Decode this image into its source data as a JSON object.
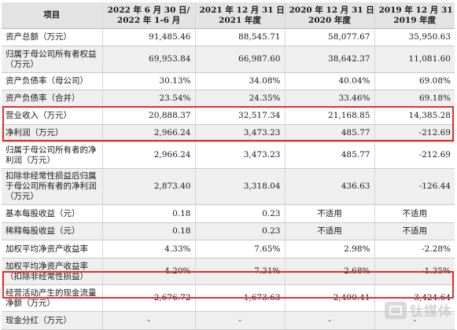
{
  "table": {
    "headers": [
      {
        "line1": "项目",
        "line2": ""
      },
      {
        "line1": "2022 年 6 月 30 日/",
        "line2": "2022 年 1-6 月"
      },
      {
        "line1": "2021 年 12 月 31 日/",
        "line2": "2021 年度"
      },
      {
        "line1": "2020 年 12 月 31 日/",
        "line2": "2020 年度"
      },
      {
        "line1": "2019 年 12 月 31 日/",
        "line2": "2019 年度"
      }
    ],
    "rows": [
      {
        "label": "资产总额（万元）",
        "values": [
          "91,485.46",
          "88,545.71",
          "58,077.67",
          "35,950.63"
        ]
      },
      {
        "label": "归属于母公司所有者权益（万元）",
        "values": [
          "69,953.84",
          "66,987.60",
          "38,642.37",
          "11,081.60"
        ]
      },
      {
        "label": "资产负债率（母公司）",
        "values": [
          "30.13%",
          "34.08%",
          "40.04%",
          "69.08%"
        ]
      },
      {
        "label": "资产负债率（合并）",
        "values": [
          "23.54%",
          "24.35%",
          "33.46%",
          "69.18%"
        ]
      },
      {
        "label": "营业收入（万元）",
        "values": [
          "20,888.37",
          "32,517.34",
          "21,168.85",
          "14,385.28"
        ]
      },
      {
        "label": "净利润（万元）",
        "values": [
          "2,966.24",
          "3,473.23",
          "485.77",
          "-212.69"
        ]
      },
      {
        "label": "归属于母公司所有者的净利润（万元）",
        "values": [
          "2,966.24",
          "3,473.23",
          "485.77",
          "-212.69"
        ]
      },
      {
        "label": "扣除非经常性损益后归属于母公司所有者的净利润（万元）",
        "values": [
          "2,873.40",
          "3,318.04",
          "436.63",
          "-126.44"
        ]
      },
      {
        "label": "基本每股收益（元）",
        "values": [
          "0.18",
          "0.23",
          "不适用",
          "不适用"
        ]
      },
      {
        "label": "稀释每股收益（元）",
        "values": [
          "0.18",
          "0.23",
          "不适用",
          "不适用"
        ]
      },
      {
        "label": "加权平均净资产收益率",
        "values": [
          "4.33%",
          "7.65%",
          "2.98%",
          "-2.28%"
        ]
      },
      {
        "label": "加权平均净资产收益率（扣除非经常性损益）",
        "values": [
          "4.20%",
          "7.31%",
          "2.68%",
          "-1.35%"
        ]
      },
      {
        "label": "经营活动产生的现金流量净额（万元）",
        "values": [
          "-2,676.72",
          "-1,673.63",
          "-2,490.41",
          "-3,424.64"
        ]
      },
      {
        "label": "现金分红（万元）",
        "values": [
          "-",
          "-",
          "-",
          "-"
        ]
      }
    ]
  },
  "highlight_color": "#e0302e",
  "watermark": {
    "text": "钛媒体",
    "icon": "tmtpost-logo-icon"
  }
}
